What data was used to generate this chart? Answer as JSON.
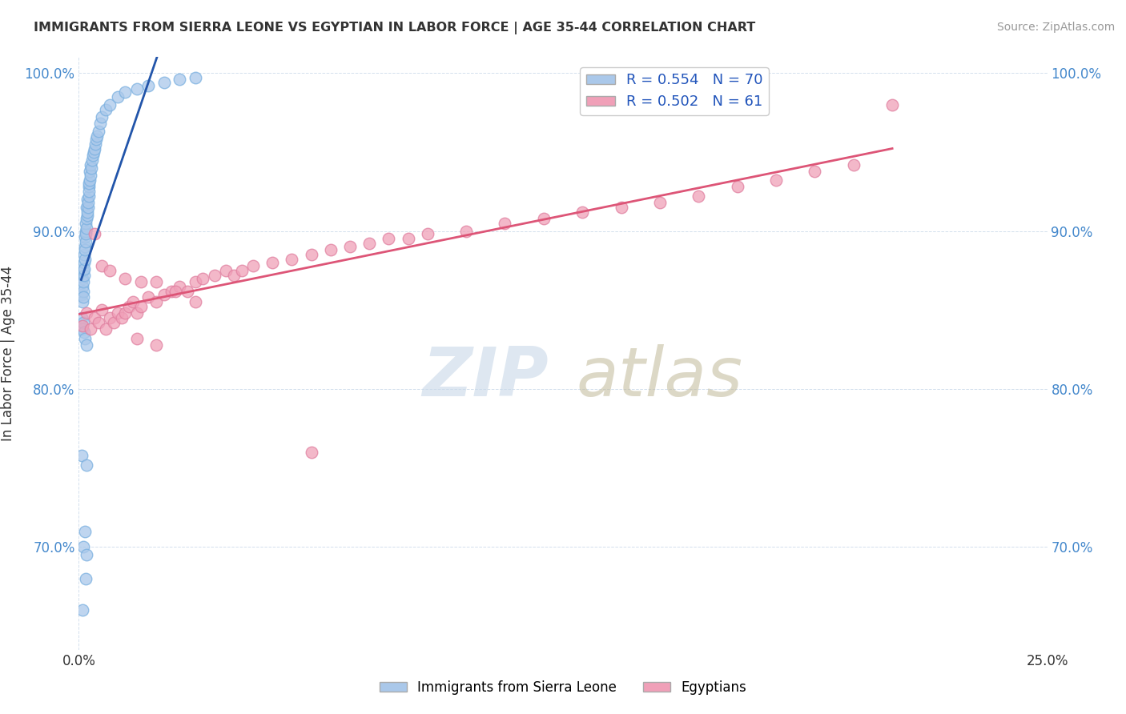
{
  "title": "IMMIGRANTS FROM SIERRA LEONE VS EGYPTIAN IN LABOR FORCE | AGE 35-44 CORRELATION CHART",
  "source": "Source: ZipAtlas.com",
  "ylabel": "In Labor Force | Age 35-44",
  "xlim": [
    0.0,
    0.25
  ],
  "ylim": [
    0.635,
    1.01
  ],
  "x_ticks": [
    0.0,
    0.25
  ],
  "x_tick_labels": [
    "0.0%",
    "25.0%"
  ],
  "y_ticks": [
    0.7,
    0.8,
    0.9,
    1.0
  ],
  "y_tick_labels": [
    "70.0%",
    "80.0%",
    "90.0%",
    "100.0%"
  ],
  "sierra_leone_color": "#aac8ea",
  "egypt_color": "#f0a0b8",
  "sierra_leone_edge": "#7ab0e0",
  "egypt_edge": "#e080a0",
  "sierra_leone_line_color": "#2255aa",
  "egypt_line_color": "#dd5577",
  "legend_r1": "R = 0.554   N = 70",
  "legend_r2": "R = 0.502   N = 61",
  "legend_color1": "#aac8ea",
  "legend_color2": "#f0a0b8",
  "legend_text_color": "#2255bb",
  "watermark_zip_color": "#c8d8e8",
  "watermark_atlas_color": "#c0b898",
  "sierra_leone_scatter": [
    [
      0.0008,
      0.86
    ],
    [
      0.0009,
      0.87
    ],
    [
      0.001,
      0.855
    ],
    [
      0.001,
      0.865
    ],
    [
      0.0011,
      0.862
    ],
    [
      0.0011,
      0.875
    ],
    [
      0.0012,
      0.858
    ],
    [
      0.0012,
      0.868
    ],
    [
      0.0013,
      0.872
    ],
    [
      0.0013,
      0.88
    ],
    [
      0.0014,
      0.876
    ],
    [
      0.0014,
      0.885
    ],
    [
      0.0015,
      0.882
    ],
    [
      0.0015,
      0.89
    ],
    [
      0.0016,
      0.888
    ],
    [
      0.0016,
      0.896
    ],
    [
      0.0017,
      0.893
    ],
    [
      0.0017,
      0.9
    ],
    [
      0.0018,
      0.898
    ],
    [
      0.0018,
      0.905
    ],
    [
      0.0019,
      0.902
    ],
    [
      0.002,
      0.908
    ],
    [
      0.002,
      0.915
    ],
    [
      0.0021,
      0.91
    ],
    [
      0.0022,
      0.912
    ],
    [
      0.0022,
      0.92
    ],
    [
      0.0023,
      0.915
    ],
    [
      0.0024,
      0.918
    ],
    [
      0.0025,
      0.922
    ],
    [
      0.0025,
      0.928
    ],
    [
      0.0026,
      0.925
    ],
    [
      0.0027,
      0.93
    ],
    [
      0.0028,
      0.932
    ],
    [
      0.0028,
      0.938
    ],
    [
      0.003,
      0.935
    ],
    [
      0.003,
      0.942
    ],
    [
      0.0032,
      0.94
    ],
    [
      0.0034,
      0.945
    ],
    [
      0.0036,
      0.948
    ],
    [
      0.0038,
      0.95
    ],
    [
      0.004,
      0.952
    ],
    [
      0.0042,
      0.955
    ],
    [
      0.0044,
      0.958
    ],
    [
      0.0046,
      0.96
    ],
    [
      0.005,
      0.963
    ],
    [
      0.0055,
      0.968
    ],
    [
      0.006,
      0.972
    ],
    [
      0.007,
      0.977
    ],
    [
      0.008,
      0.98
    ],
    [
      0.01,
      0.985
    ],
    [
      0.012,
      0.988
    ],
    [
      0.015,
      0.99
    ],
    [
      0.018,
      0.992
    ],
    [
      0.022,
      0.994
    ],
    [
      0.026,
      0.996
    ],
    [
      0.03,
      0.997
    ],
    [
      0.0006,
      0.84
    ],
    [
      0.0007,
      0.845
    ],
    [
      0.001,
      0.838
    ],
    [
      0.0012,
      0.842
    ],
    [
      0.0014,
      0.836
    ],
    [
      0.0016,
      0.832
    ],
    [
      0.002,
      0.828
    ],
    [
      0.0008,
      0.758
    ],
    [
      0.0015,
      0.71
    ],
    [
      0.0018,
      0.68
    ],
    [
      0.0012,
      0.7
    ],
    [
      0.001,
      0.66
    ],
    [
      0.002,
      0.752
    ],
    [
      0.002,
      0.695
    ]
  ],
  "egypt_scatter": [
    [
      0.001,
      0.84
    ],
    [
      0.002,
      0.848
    ],
    [
      0.003,
      0.838
    ],
    [
      0.004,
      0.845
    ],
    [
      0.005,
      0.842
    ],
    [
      0.006,
      0.85
    ],
    [
      0.007,
      0.838
    ],
    [
      0.008,
      0.845
    ],
    [
      0.009,
      0.842
    ],
    [
      0.01,
      0.848
    ],
    [
      0.011,
      0.845
    ],
    [
      0.012,
      0.848
    ],
    [
      0.013,
      0.852
    ],
    [
      0.014,
      0.855
    ],
    [
      0.015,
      0.848
    ],
    [
      0.016,
      0.852
    ],
    [
      0.018,
      0.858
    ],
    [
      0.02,
      0.855
    ],
    [
      0.022,
      0.86
    ],
    [
      0.024,
      0.862
    ],
    [
      0.026,
      0.865
    ],
    [
      0.028,
      0.862
    ],
    [
      0.03,
      0.868
    ],
    [
      0.032,
      0.87
    ],
    [
      0.035,
      0.872
    ],
    [
      0.038,
      0.875
    ],
    [
      0.04,
      0.872
    ],
    [
      0.042,
      0.875
    ],
    [
      0.045,
      0.878
    ],
    [
      0.05,
      0.88
    ],
    [
      0.055,
      0.882
    ],
    [
      0.06,
      0.885
    ],
    [
      0.065,
      0.888
    ],
    [
      0.07,
      0.89
    ],
    [
      0.075,
      0.892
    ],
    [
      0.08,
      0.895
    ],
    [
      0.085,
      0.895
    ],
    [
      0.09,
      0.898
    ],
    [
      0.1,
      0.9
    ],
    [
      0.11,
      0.905
    ],
    [
      0.12,
      0.908
    ],
    [
      0.13,
      0.912
    ],
    [
      0.14,
      0.915
    ],
    [
      0.15,
      0.918
    ],
    [
      0.16,
      0.922
    ],
    [
      0.17,
      0.928
    ],
    [
      0.18,
      0.932
    ],
    [
      0.19,
      0.938
    ],
    [
      0.2,
      0.942
    ],
    [
      0.21,
      0.98
    ],
    [
      0.004,
      0.898
    ],
    [
      0.006,
      0.878
    ],
    [
      0.008,
      0.875
    ],
    [
      0.012,
      0.87
    ],
    [
      0.016,
      0.868
    ],
    [
      0.02,
      0.868
    ],
    [
      0.025,
      0.862
    ],
    [
      0.03,
      0.855
    ],
    [
      0.015,
      0.832
    ],
    [
      0.02,
      0.828
    ],
    [
      0.06,
      0.76
    ]
  ]
}
